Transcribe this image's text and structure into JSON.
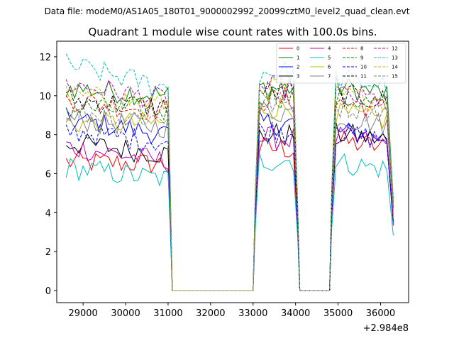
{
  "suptitle": "Data file: modeM0/AS1A05_180T01_9000002992_20099cztM0_level2_quad_clean.evt",
  "chart_data": {
    "type": "line",
    "title": "Quadrant 1 module wise count rates with 100.0s bins.",
    "xlabel": "",
    "ylabel": "",
    "x_offset_label": "+2.984e8",
    "xlim": [
      28380,
      36660
    ],
    "ylim": [
      -0.62,
      12.8
    ],
    "x_ticks": [
      29000,
      30000,
      31000,
      32000,
      33000,
      34000,
      35000,
      36000
    ],
    "x_tick_labels": [
      "29000",
      "30000",
      "31000",
      "32000",
      "33000",
      "34000",
      "35000",
      "36000"
    ],
    "y_ticks": [
      0,
      2,
      4,
      6,
      8,
      10,
      12
    ],
    "y_tick_labels": [
      "0",
      "2",
      "4",
      "6",
      "8",
      "10",
      "12"
    ],
    "grid": false,
    "legend_position": "top-right",
    "legend_columns": 4,
    "segments": [
      {
        "start": 28600,
        "end": 31000
      },
      {
        "start": 33050,
        "end": 34000
      },
      {
        "start": 34850,
        "end": 36300
      }
    ],
    "series": [
      {
        "name": "0",
        "color": "#ff0000",
        "dash": "solid",
        "levels": [
          6.6,
          6.5,
          7.3,
          7.4
        ]
      },
      {
        "name": "1",
        "color": "#008000",
        "dash": "solid",
        "levels": [
          10.4,
          10.0,
          10.4,
          10.2
        ]
      },
      {
        "name": "2",
        "color": "#0000ff",
        "dash": "solid",
        "levels": [
          8.8,
          8.0,
          8.6,
          7.9
        ]
      },
      {
        "name": "3",
        "color": "#000000",
        "dash": "solid",
        "levels": [
          7.6,
          7.0,
          8.0,
          7.8
        ]
      },
      {
        "name": "4",
        "color": "#bf00bf",
        "dash": "solid",
        "levels": [
          7.4,
          6.6,
          7.8,
          7.6
        ]
      },
      {
        "name": "5",
        "color": "#00bfbf",
        "dash": "solid",
        "levels": [
          6.3,
          5.7,
          6.7,
          6.3
        ]
      },
      {
        "name": "6",
        "color": "#bfbf00",
        "dash": "solid",
        "levels": [
          8.6,
          8.6,
          9.4,
          8.8
        ]
      },
      {
        "name": "7",
        "color": "#808080",
        "dash": "solid",
        "levels": [
          8.8,
          8.4,
          9.2,
          8.6
        ]
      },
      {
        "name": "8",
        "color": "#ff0000",
        "dash": "dashed",
        "levels": [
          9.8,
          9.2,
          9.8,
          9.4
        ]
      },
      {
        "name": "9",
        "color": "#008000",
        "dash": "dashed",
        "levels": [
          9.4,
          9.2,
          10.0,
          9.6
        ]
      },
      {
        "name": "10",
        "color": "#0000ff",
        "dash": "dashed",
        "levels": [
          8.2,
          7.6,
          8.2,
          7.8
        ]
      },
      {
        "name": "11",
        "color": "#000000",
        "dash": "dashed",
        "levels": [
          9.8,
          9.4,
          10.2,
          9.8
        ]
      },
      {
        "name": "12",
        "color": "#bf00bf",
        "dash": "dashed",
        "levels": [
          10.6,
          9.8,
          10.4,
          9.8
        ]
      },
      {
        "name": "13",
        "color": "#00bfbf",
        "dash": "dashed",
        "levels": [
          11.6,
          10.4,
          11.2,
          10.6
        ]
      },
      {
        "name": "14",
        "color": "#bfbf00",
        "dash": "dashed",
        "levels": [
          10.0,
          9.6,
          10.4,
          9.8
        ]
      },
      {
        "name": "15",
        "color": "#808080",
        "dash": "dashed",
        "levels": [
          9.2,
          8.8,
          9.6,
          9.2
        ]
      }
    ]
  }
}
